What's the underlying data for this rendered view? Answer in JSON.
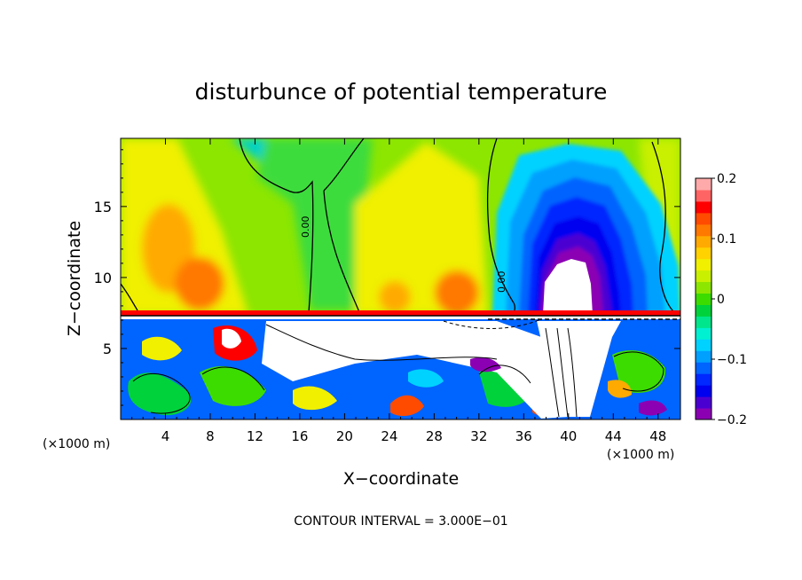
{
  "chart_data": {
    "type": "heatmap",
    "title": "disturbunce of potential temperature",
    "xlabel": "X−coordinate",
    "ylabel": "Z−coordinate",
    "x_unit": "(×1000 m)",
    "y_unit": "(×1000 m)",
    "xlim": [
      0,
      50
    ],
    "ylim": [
      0,
      19.8
    ],
    "x_ticks": [
      4,
      8,
      12,
      16,
      20,
      24,
      28,
      32,
      36,
      40,
      44,
      48
    ],
    "y_ticks": [
      5,
      10,
      15
    ],
    "contour_interval_text": "CONTOUR INTERVAL = 3.000E−01",
    "contour_label": "0.00",
    "colorbar": {
      "range": [
        -0.2,
        0.2
      ],
      "ticks": [
        0.2,
        0.1,
        0,
        -0.1,
        -0.2
      ],
      "tick_labels": [
        "0.2",
        "0.1",
        "0",
        "−0.1",
        "−0.2"
      ],
      "colors": [
        "#8c00b4",
        "#4b00d2",
        "#0000f0",
        "#0028ff",
        "#0064ff",
        "#00a0ff",
        "#00d2ff",
        "#00f0d2",
        "#00e68c",
        "#00d23c",
        "#3cdc00",
        "#8ce600",
        "#c8f000",
        "#f0f000",
        "#ffd200",
        "#ffaa00",
        "#ff7800",
        "#ff4b00",
        "#ff0000",
        "#ff6464",
        "#ffaaaa"
      ]
    },
    "features": [
      {
        "name": "upper positive bands",
        "x": [
          2,
          9,
          20,
          30
        ],
        "z": [
          9,
          13
        ]
      },
      {
        "name": "cold anomaly",
        "x_center": 40,
        "z_range": [
          8,
          19.8
        ],
        "min_value": -0.2
      },
      {
        "name": "near-neutral tongue",
        "x": [
          11,
          19
        ],
        "z_top": 19.8
      },
      {
        "name": "interface level",
        "z": 7.4
      },
      {
        "name": "turbulent lower layer",
        "z_range": [
          0,
          7.2
        ]
      }
    ]
  }
}
